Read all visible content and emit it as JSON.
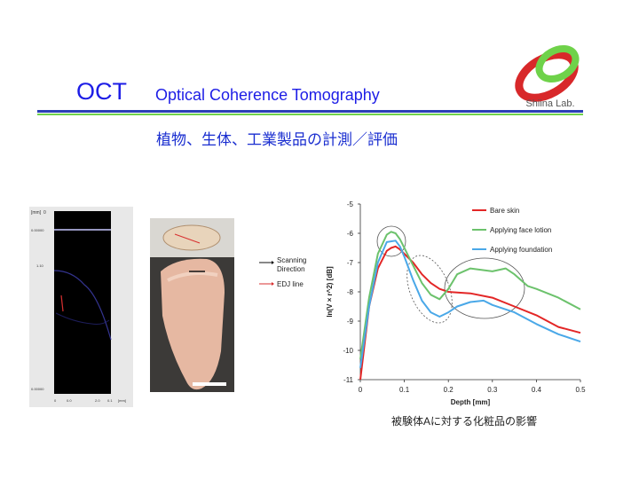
{
  "header": {
    "title_main": "OCT",
    "title_sub": "Optical Coherence Tomography",
    "subtitle": "植物、生体、工業製品の計測／評価",
    "logo_text": "Shiina Lab."
  },
  "colors": {
    "title": "#1d1de6",
    "rule_blue": "#2a3fb5",
    "rule_green": "#6fd24a",
    "series_red": "#e32626",
    "series_green": "#6cc26c",
    "series_blue": "#4aa8e8"
  },
  "oct_image": {
    "axis_unit": "[mm]",
    "top_ticks": [
      "0"
    ],
    "left_ticks": [
      "0.00000",
      "1.10",
      "0.00000"
    ],
    "bottom_ticks": [
      "0",
      "0.0",
      "2.0",
      "0.1",
      "[mm]"
    ]
  },
  "direction_legend": {
    "scanning_label": "Scanning Direction",
    "edj_label": "EDJ line"
  },
  "chart_data": {
    "type": "line",
    "xlabel": "Depth [mm]",
    "ylabel": "ln(V × r^2) [dB]",
    "xlim": [
      0,
      0.5
    ],
    "ylim": [
      -11,
      -5
    ],
    "xticks": [
      "0",
      "0.1",
      "0.2",
      "0.3",
      "0.4",
      "0.5"
    ],
    "yticks": [
      "-5",
      "-6",
      "-7",
      "-8",
      "-9",
      "-10",
      "-11"
    ],
    "legend_position": "top-right",
    "series": [
      {
        "name": "Bare skin",
        "color": "#e32626",
        "x": [
          0.0,
          0.02,
          0.04,
          0.06,
          0.07,
          0.08,
          0.09,
          0.1,
          0.12,
          0.14,
          0.16,
          0.18,
          0.2,
          0.25,
          0.3,
          0.35,
          0.4,
          0.45,
          0.5
        ],
        "y": [
          -11.0,
          -8.5,
          -7.2,
          -6.6,
          -6.5,
          -6.45,
          -6.55,
          -6.7,
          -7.0,
          -7.4,
          -7.7,
          -7.9,
          -8.0,
          -8.05,
          -8.2,
          -8.5,
          -8.8,
          -9.2,
          -9.4
        ]
      },
      {
        "name": "Applying face lotion",
        "color": "#6cc26c",
        "x": [
          0.0,
          0.02,
          0.04,
          0.06,
          0.07,
          0.08,
          0.09,
          0.1,
          0.12,
          0.14,
          0.16,
          0.18,
          0.2,
          0.22,
          0.25,
          0.3,
          0.33,
          0.35,
          0.38,
          0.4,
          0.45,
          0.5
        ],
        "y": [
          -10.3,
          -8.2,
          -6.7,
          -6.05,
          -5.95,
          -6.0,
          -6.2,
          -6.5,
          -7.1,
          -7.7,
          -8.1,
          -8.25,
          -7.9,
          -7.4,
          -7.2,
          -7.3,
          -7.2,
          -7.4,
          -7.8,
          -7.9,
          -8.2,
          -8.6
        ]
      },
      {
        "name": "Applying foundation",
        "color": "#4aa8e8",
        "x": [
          0.0,
          0.02,
          0.04,
          0.06,
          0.08,
          0.09,
          0.1,
          0.12,
          0.14,
          0.16,
          0.18,
          0.2,
          0.22,
          0.25,
          0.28,
          0.3,
          0.35,
          0.4,
          0.45,
          0.5
        ],
        "y": [
          -10.6,
          -8.5,
          -7.0,
          -6.3,
          -6.25,
          -6.45,
          -6.8,
          -7.6,
          -8.3,
          -8.7,
          -8.85,
          -8.7,
          -8.5,
          -8.35,
          -8.3,
          -8.45,
          -8.7,
          -9.1,
          -9.45,
          -9.7
        ]
      }
    ]
  },
  "caption": "被験体Aに対する化粧品の影響"
}
